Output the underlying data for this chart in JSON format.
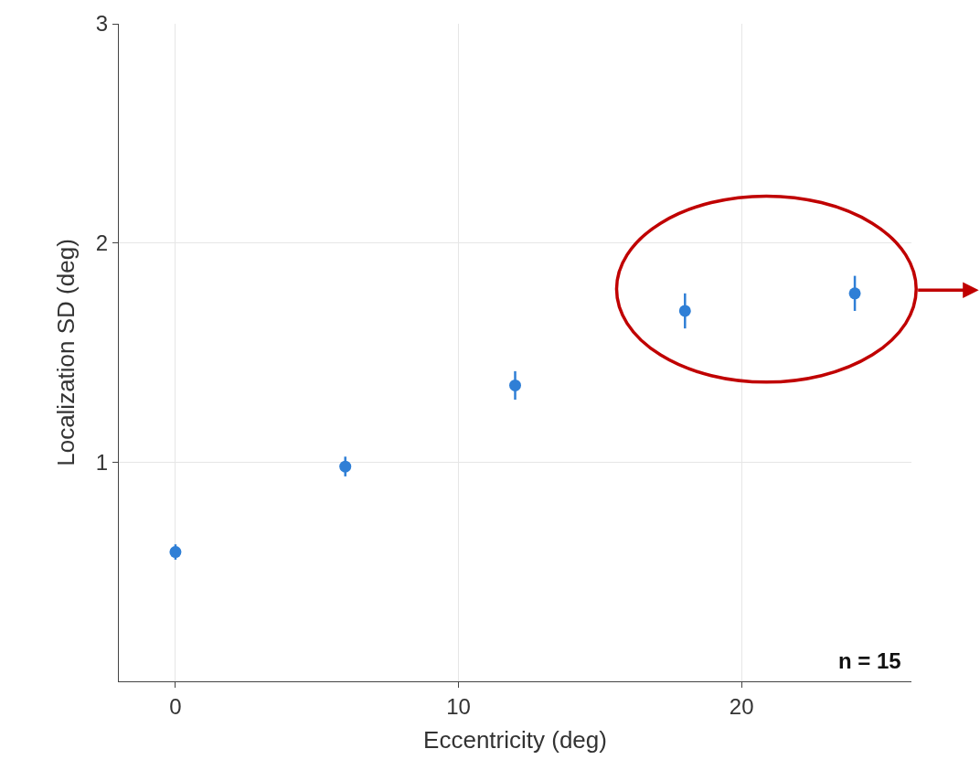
{
  "chart_data": {
    "type": "scatter",
    "xlabel": "Eccentricity (deg)",
    "ylabel": "Localization SD (deg)",
    "x": [
      0,
      6,
      12,
      18,
      24
    ],
    "series": [
      {
        "color": "#2f7fd6",
        "values": [
          0.59,
          0.98,
          1.35,
          1.69,
          1.77
        ],
        "errors": [
          0.035,
          0.045,
          0.065,
          0.08,
          0.08
        ]
      }
    ],
    "xlim": [
      -2,
      26
    ],
    "ylim": [
      0,
      3
    ],
    "xticks": [
      0,
      10,
      20
    ],
    "yticks": [
      1,
      2,
      3
    ],
    "grid": true,
    "marker": "circle",
    "annotations": [
      "n = 15"
    ]
  }
}
